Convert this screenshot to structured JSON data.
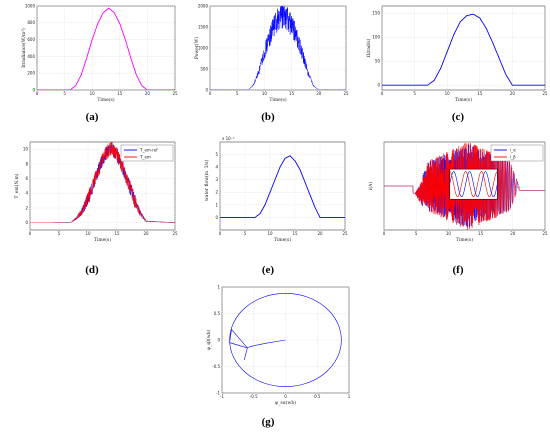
{
  "chart_data": [
    {
      "id": "a",
      "type": "line",
      "panel_label": "(a)",
      "xlabel": "Time(s)",
      "ylabel": "Irradiance(W/m²)",
      "xlim": [
        0,
        25
      ],
      "ylim": [
        0,
        1000
      ],
      "xticks": [
        "0",
        "5",
        "10",
        "15",
        "20",
        "25"
      ],
      "yticks": [
        "0",
        "200",
        "400",
        "600",
        "800",
        "1000"
      ],
      "grid": true,
      "series": [
        {
          "color": "#ff00ff",
          "x": [
            0,
            6,
            7,
            8,
            9,
            10,
            11,
            12,
            13,
            14,
            15,
            16,
            17,
            18,
            19,
            20,
            25
          ],
          "y": [
            0,
            0,
            50,
            180,
            380,
            600,
            790,
            920,
            975,
            920,
            790,
            600,
            380,
            180,
            50,
            0,
            0
          ]
        }
      ]
    },
    {
      "id": "b",
      "type": "line",
      "panel_label": "(b)",
      "xlabel": "Time(s)",
      "ylabel": "Power(W)",
      "xlim": [
        0,
        25
      ],
      "ylim": [
        0,
        2000
      ],
      "xticks": [
        "0",
        "5",
        "10",
        "15",
        "20",
        "25"
      ],
      "yticks": [
        "0",
        "500",
        "1000",
        "1500",
        "2000"
      ],
      "grid": true,
      "series": [
        {
          "color": "#0000ff",
          "noisy": true,
          "x": [
            0,
            7,
            8,
            9,
            10,
            11,
            12,
            13,
            14,
            15,
            16,
            17,
            18,
            19,
            20,
            25
          ],
          "y": [
            0,
            0,
            120,
            450,
            900,
            1280,
            1600,
            1800,
            1750,
            1550,
            1250,
            850,
            420,
            100,
            0,
            0
          ]
        }
      ]
    },
    {
      "id": "c",
      "type": "line",
      "panel_label": "(c)",
      "xlabel": "Time(s)",
      "ylabel": "Ω(rad/s)",
      "xlim": [
        0,
        25
      ],
      "ylim": [
        -10,
        165
      ],
      "xticks": [
        "0",
        "5",
        "10",
        "15",
        "20",
        "25"
      ],
      "yticks": [
        "0",
        "50",
        "100",
        "150"
      ],
      "grid": true,
      "series": [
        {
          "color": "#0000ff",
          "x": [
            0,
            7,
            8,
            9,
            10,
            11,
            12,
            13,
            14,
            15,
            16,
            17,
            18,
            19,
            20,
            25
          ],
          "y": [
            0,
            0,
            10,
            35,
            70,
            105,
            132,
            145,
            148,
            140,
            118,
            88,
            55,
            22,
            0,
            0
          ]
        }
      ]
    },
    {
      "id": "d",
      "type": "line",
      "panel_label": "(d)",
      "xlabel": "Time(s)",
      "ylabel": "T_em(N.m)",
      "xlim": [
        0,
        25
      ],
      "ylim": [
        -1,
        11
      ],
      "xticks": [
        "0",
        "5",
        "10",
        "15",
        "20",
        "25"
      ],
      "yticks": [
        "0",
        "2",
        "4",
        "6",
        "8",
        "10"
      ],
      "legend": "top-right",
      "grid": true,
      "series": [
        {
          "name": "T_em-ref",
          "color": "#0000ff",
          "noisy": true,
          "x": [
            4,
            7,
            8,
            9,
            10,
            11,
            12,
            13,
            14,
            15,
            16,
            17,
            18,
            19,
            20,
            25
          ],
          "y": [
            0,
            0,
            0.6,
            1.6,
            3.2,
            5.4,
            7.6,
            9.4,
            10.2,
            9.3,
            7.5,
            5.3,
            3.1,
            1.3,
            0.2,
            0
          ]
        },
        {
          "name": "T_em",
          "color": "#ff0000",
          "noisy": true,
          "x": [
            0,
            7,
            8,
            9,
            10,
            11,
            12,
            13,
            14,
            15,
            16,
            17,
            18,
            19,
            20,
            25
          ],
          "y": [
            0,
            0,
            0.6,
            1.6,
            3.2,
            5.4,
            7.6,
            9.4,
            10.2,
            9.3,
            7.5,
            5.3,
            3.1,
            1.3,
            0.2,
            0
          ]
        }
      ]
    },
    {
      "id": "e",
      "type": "line",
      "panel_label": "(e)",
      "xlabel": "Time(s)",
      "ylabel": "water flow(m",
      "ylabel2": "3/s)",
      "exponent": "x 10⁻³",
      "xlim": [
        0,
        25
      ],
      "ylim": [
        -1,
        6
      ],
      "xticks": [
        "0",
        "5",
        "10",
        "15",
        "20",
        "25"
      ],
      "yticks": [
        "0",
        "1",
        "2",
        "3",
        "4",
        "5"
      ],
      "grid": true,
      "series": [
        {
          "color": "#0000ff",
          "x": [
            0,
            7,
            8,
            9,
            10,
            11,
            12,
            13,
            14,
            15,
            16,
            17,
            18,
            19,
            20,
            25
          ],
          "y": [
            0,
            0,
            0.3,
            1.0,
            2.0,
            3.0,
            4.0,
            4.7,
            4.9,
            4.5,
            3.8,
            2.8,
            1.8,
            0.8,
            0,
            0
          ]
        }
      ]
    },
    {
      "id": "f",
      "type": "line",
      "panel_label": "(f)",
      "xlabel": "Time(s)",
      "ylabel": "i(A)",
      "xlim": [
        0,
        25
      ],
      "ylim": [
        -6,
        6
      ],
      "xticks": [
        "0",
        "5",
        "10",
        "15",
        "20",
        "25"
      ],
      "legend": "top-right",
      "grid": true,
      "series": [
        {
          "name": "i_α",
          "color": "#0000ff"
        },
        {
          "name": "i_β",
          "color": "#ff0000"
        }
      ]
    },
    {
      "id": "g",
      "type": "line",
      "panel_label": "(g)",
      "xlabel": "φ_sα(wb)",
      "ylabel": "φ_sβ(wb)",
      "xlim": [
        -1,
        1
      ],
      "ylim": [
        -1,
        1
      ],
      "xticks": [
        "-1",
        "-0.5",
        "0",
        "0.5",
        "1"
      ],
      "yticks": [
        "-1",
        "-0.5",
        "0",
        "0.5",
        "1"
      ],
      "grid": true,
      "series": [
        {
          "color": "#0000ff",
          "circle_radius": 0.88
        }
      ]
    }
  ]
}
